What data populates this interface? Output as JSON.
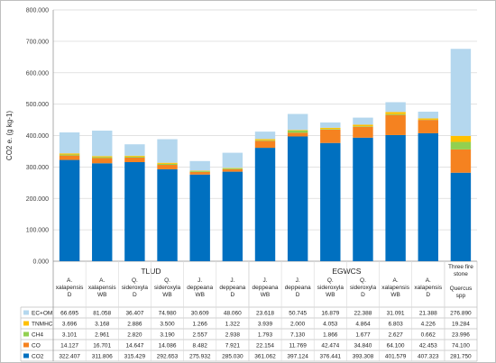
{
  "chart_data": {
    "type": "bar",
    "stacked": true,
    "ylabel": "CO2 e. (g kg-1)",
    "ylim": [
      0,
      800
    ],
    "ytick_step": 100,
    "ytick_labels": [
      "0.000",
      "100.000",
      "200.000",
      "300.000",
      "400.000",
      "500.000",
      "600.000",
      "700.000",
      "800.000"
    ],
    "grid": true,
    "legend": "table-below",
    "groups": [
      {
        "label": "TLUD",
        "count": 6
      },
      {
        "label": "EGWCS",
        "count": 6
      },
      {
        "label": "",
        "count": 1
      }
    ],
    "categories": [
      [
        "A.",
        "xalapensis",
        "D"
      ],
      [
        "A.",
        "xalapensis",
        "WB"
      ],
      [
        "Q.",
        "sideroxyla",
        "D"
      ],
      [
        "Q.",
        "sideroxyla",
        "WB"
      ],
      [
        "J.",
        "deppeana",
        "WB"
      ],
      [
        "J.",
        "deppeana",
        "D"
      ],
      [
        "J.",
        "deppeana",
        "WB"
      ],
      [
        "J.",
        "deppeana",
        "D"
      ],
      [
        "Q.",
        "sideroxyla",
        "WB"
      ],
      [
        "Q.",
        "sideroxyla",
        "D"
      ],
      [
        "A.",
        "xalapensis",
        "WB"
      ],
      [
        "A.",
        "xalapensis",
        "D"
      ],
      [
        "Three fire",
        "stone",
        "",
        "Quercus",
        "spp"
      ]
    ],
    "series": [
      {
        "name": "CO2",
        "color": "#0070c0",
        "values": [
          322.407,
          311.806,
          315.429,
          292.653,
          275.932,
          285.03,
          361.062,
          397.124,
          376.441,
          393.308,
          401.579,
          407.323,
          281.75
        ],
        "labels": [
          "322.407",
          "311.806",
          "315.429",
          "292.653",
          "275.932",
          "285.030",
          "361.062",
          "397.124",
          "376.441",
          "393.308",
          "401.579",
          "407.323",
          "281.750"
        ]
      },
      {
        "name": "CO",
        "color": "#f58220",
        "values": [
          14.127,
          16.701,
          14.647,
          14.086,
          8.482,
          7.921,
          22.154,
          11.769,
          42.474,
          34.84,
          64.1,
          42.453,
          74.1
        ],
        "labels": [
          "14.127",
          "16.701",
          "14.647",
          "14.086",
          "8.482",
          "7.921",
          "22.154",
          "11.769",
          "42.474",
          "34.840",
          "64.100",
          "42.453",
          "74.100"
        ]
      },
      {
        "name": "CH4",
        "color": "#92d050",
        "values": [
          3.101,
          2.961,
          2.82,
          3.19,
          2.557,
          2.938,
          1.793,
          7.13,
          1.866,
          1.677,
          2.627,
          0.662,
          23.996
        ],
        "labels": [
          "3.101",
          "2.961",
          "2.820",
          "3.190",
          "2.557",
          "2.938",
          "1.793",
          "7.130",
          "1.866",
          "1.677",
          "2.627",
          "0.662",
          "23.996"
        ]
      },
      {
        "name": "TNMHC",
        "color": "#ffc000",
        "values": [
          3.696,
          3.168,
          2.886,
          3.5,
          1.266,
          1.322,
          3.939,
          2.0,
          4.053,
          4.864,
          6.803,
          4.226,
          19.284
        ],
        "labels": [
          "3.696",
          "3.168",
          "2.886",
          "3.500",
          "1.266",
          "1.322",
          "3.939",
          "2.000",
          "4.053",
          "4.864",
          "6.803",
          "4.226",
          "19.284"
        ]
      },
      {
        "name": "EC+OM",
        "color": "#b4d7ee",
        "values": [
          66.695,
          81.058,
          36.407,
          74.98,
          30.609,
          48.06,
          23.618,
          50.745,
          16.879,
          22.388,
          31.091,
          21.388,
          276.89
        ],
        "labels": [
          "66.695",
          "81.058",
          "36.407",
          "74.980",
          "30.609",
          "48.060",
          "23.618",
          "50.745",
          "16.879",
          "22.388",
          "31.091",
          "21.388",
          "276.890"
        ]
      }
    ]
  }
}
